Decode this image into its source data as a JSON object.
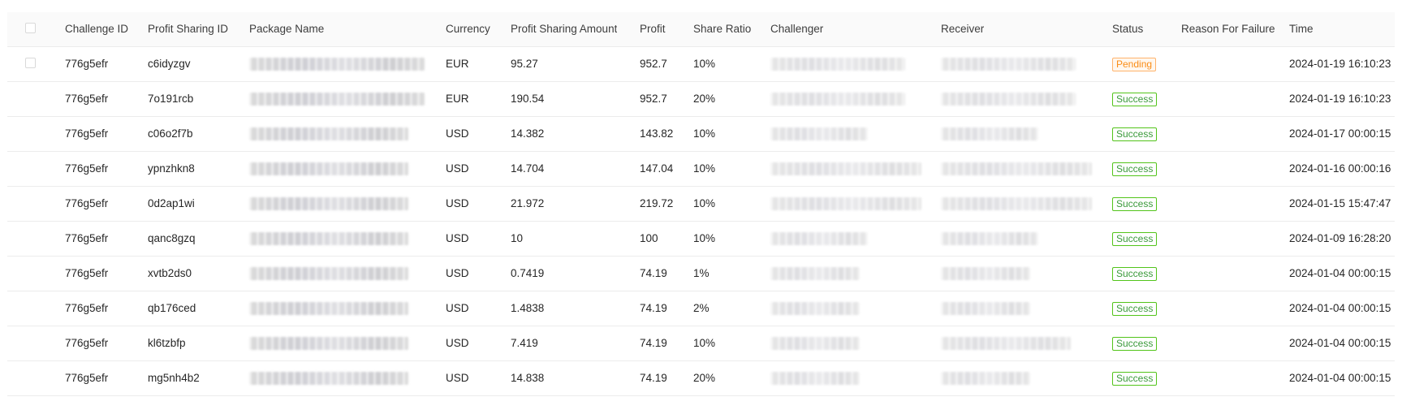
{
  "headers": {
    "challenge_id": "Challenge ID",
    "profit_sharing_id": "Profit Sharing ID",
    "package_name": "Package Name",
    "currency": "Currency",
    "profit_sharing_amount": "Profit Sharing Amount",
    "profit": "Profit",
    "share_ratio": "Share Ratio",
    "challenger": "Challenger",
    "receiver": "Receiver",
    "status": "Status",
    "reason_for_failure": "Reason For Failure",
    "time": "Time"
  },
  "colors": {
    "success": "#52c41a",
    "pending": "#fa8c16",
    "header_bg": "#fafafa",
    "border": "#ececec"
  },
  "rows": [
    {
      "challenge_id": "776g5efr",
      "profit_sharing_id": "c6idyzgv",
      "currency": "EUR",
      "amount": "95.27",
      "profit": "952.7",
      "ratio": "10%",
      "status": "Pending",
      "status_type": "pending",
      "reason": "",
      "time": "2024-01-19 16:10:23"
    },
    {
      "challenge_id": "776g5efr",
      "profit_sharing_id": "7o191rcb",
      "currency": "EUR",
      "amount": "190.54",
      "profit": "952.7",
      "ratio": "20%",
      "status": "Success",
      "status_type": "success",
      "reason": "",
      "time": "2024-01-19 16:10:23"
    },
    {
      "challenge_id": "776g5efr",
      "profit_sharing_id": "c06o2f7b",
      "currency": "USD",
      "amount": "14.382",
      "profit": "143.82",
      "ratio": "10%",
      "status": "Success",
      "status_type": "success",
      "reason": "",
      "time": "2024-01-17 00:00:15"
    },
    {
      "challenge_id": "776g5efr",
      "profit_sharing_id": "ypnzhkn8",
      "currency": "USD",
      "amount": "14.704",
      "profit": "147.04",
      "ratio": "10%",
      "status": "Success",
      "status_type": "success",
      "reason": "",
      "time": "2024-01-16 00:00:16"
    },
    {
      "challenge_id": "776g5efr",
      "profit_sharing_id": "0d2ap1wi",
      "currency": "USD",
      "amount": "21.972",
      "profit": "219.72",
      "ratio": "10%",
      "status": "Success",
      "status_type": "success",
      "reason": "",
      "time": "2024-01-15 15:47:47"
    },
    {
      "challenge_id": "776g5efr",
      "profit_sharing_id": "qanc8gzq",
      "currency": "USD",
      "amount": "10",
      "profit": "100",
      "ratio": "10%",
      "status": "Success",
      "status_type": "success",
      "reason": "",
      "time": "2024-01-09 16:28:20"
    },
    {
      "challenge_id": "776g5efr",
      "profit_sharing_id": "xvtb2ds0",
      "currency": "USD",
      "amount": "0.7419",
      "profit": "74.19",
      "ratio": "1%",
      "status": "Success",
      "status_type": "success",
      "reason": "",
      "time": "2024-01-04 00:00:15"
    },
    {
      "challenge_id": "776g5efr",
      "profit_sharing_id": "qb176ced",
      "currency": "USD",
      "amount": "1.4838",
      "profit": "74.19",
      "ratio": "2%",
      "status": "Success",
      "status_type": "success",
      "reason": "",
      "time": "2024-01-04 00:00:15"
    },
    {
      "challenge_id": "776g5efr",
      "profit_sharing_id": "kl6tzbfp",
      "currency": "USD",
      "amount": "7.419",
      "profit": "74.19",
      "ratio": "10%",
      "status": "Success",
      "status_type": "success",
      "reason": "",
      "time": "2024-01-04 00:00:15"
    },
    {
      "challenge_id": "776g5efr",
      "profit_sharing_id": "mg5nh4b2",
      "currency": "USD",
      "amount": "14.838",
      "profit": "74.19",
      "ratio": "20%",
      "status": "Success",
      "status_type": "success",
      "reason": "",
      "time": "2024-01-04 00:00:15"
    }
  ]
}
